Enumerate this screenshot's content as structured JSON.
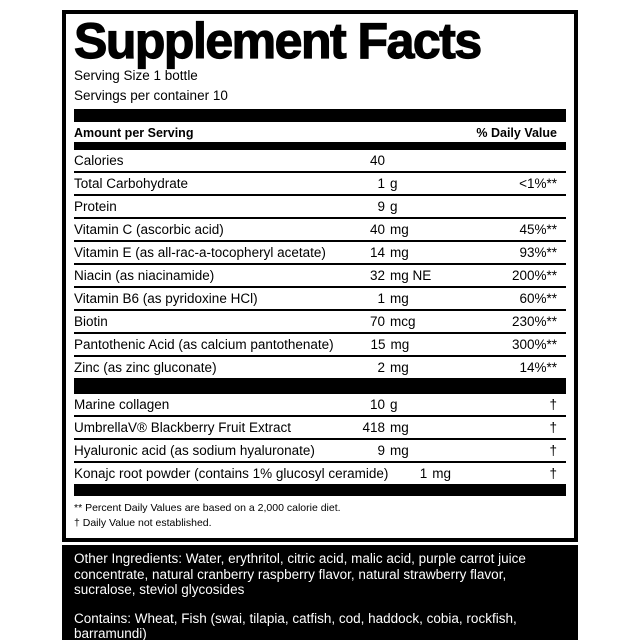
{
  "panel": {
    "title": "Supplement Facts",
    "serving_size": "Serving Size 1 bottle",
    "servings_per_container": "Servings per container 10",
    "columns": {
      "amount_header": "Amount per Serving",
      "dv_header": "% Daily Value"
    },
    "nutrients": [
      {
        "name": "Calories",
        "num": "40",
        "unit": "",
        "dv": ""
      },
      {
        "name": "Total Carbohydrate",
        "num": "1",
        "unit": "g",
        "dv": "<1%**"
      },
      {
        "name": "Protein",
        "num": "9",
        "unit": "g",
        "dv": ""
      },
      {
        "name": "Vitamin C (ascorbic acid)",
        "num": "40",
        "unit": "mg",
        "dv": "45%**"
      },
      {
        "name": "Vitamin E (as all-rac-a-tocopheryl acetate)",
        "num": "14",
        "unit": "mg",
        "dv": "93%**"
      },
      {
        "name": "Niacin (as niacinamide)",
        "num": "32",
        "unit": "mg NE",
        "dv": "200%**"
      },
      {
        "name": "Vitamin B6 (as pyridoxine HCl)",
        "num": "1",
        "unit": "mg",
        "dv": "60%**"
      },
      {
        "name": "Biotin",
        "num": "70",
        "unit": "mcg",
        "dv": "230%**"
      },
      {
        "name": "Pantothenic Acid (as calcium pantothenate)",
        "num": "15",
        "unit": "mg",
        "dv": "300%**"
      },
      {
        "name": "Zinc (as zinc gluconate)",
        "num": "2",
        "unit": "mg",
        "dv": "14%**"
      }
    ],
    "other_actives": [
      {
        "name": "Marine collagen",
        "num": "10",
        "unit": "g",
        "dv": "†"
      },
      {
        "name": "UmbrellaV® Blackberry Fruit Extract",
        "num": "418",
        "unit": "mg",
        "dv": "†"
      },
      {
        "name": "Hyaluronic acid (as sodium hyaluronate)",
        "num": "9",
        "unit": "mg",
        "dv": "†"
      },
      {
        "name": "Konajc root powder (contains 1% glucosyl ceramide)",
        "num": "1",
        "unit": "mg",
        "dv": "†"
      }
    ],
    "footnotes": {
      "percent_dv": "** Percent Daily Values are based on a 2,000 calorie diet.",
      "dagger": "† Daily Value not established."
    }
  },
  "footer": {
    "other_ingredients": "Other Ingredients: Water, erythritol, citric acid, malic acid, purple carrot juice concentrate, natural cranberry raspberry flavor, natural strawberry flavor, sucralose, steviol glycosides",
    "contains": "Contains: Wheat, Fish (swai, tilapia, catfish, cod, haddock, cobia, rockfish, barramundi)"
  },
  "colors": {
    "text": "#000000",
    "panel_border": "#000000",
    "divider_bar": "#000000",
    "footer_bg": "#000000",
    "footer_text": "#ffffff",
    "background": "#ffffff"
  }
}
